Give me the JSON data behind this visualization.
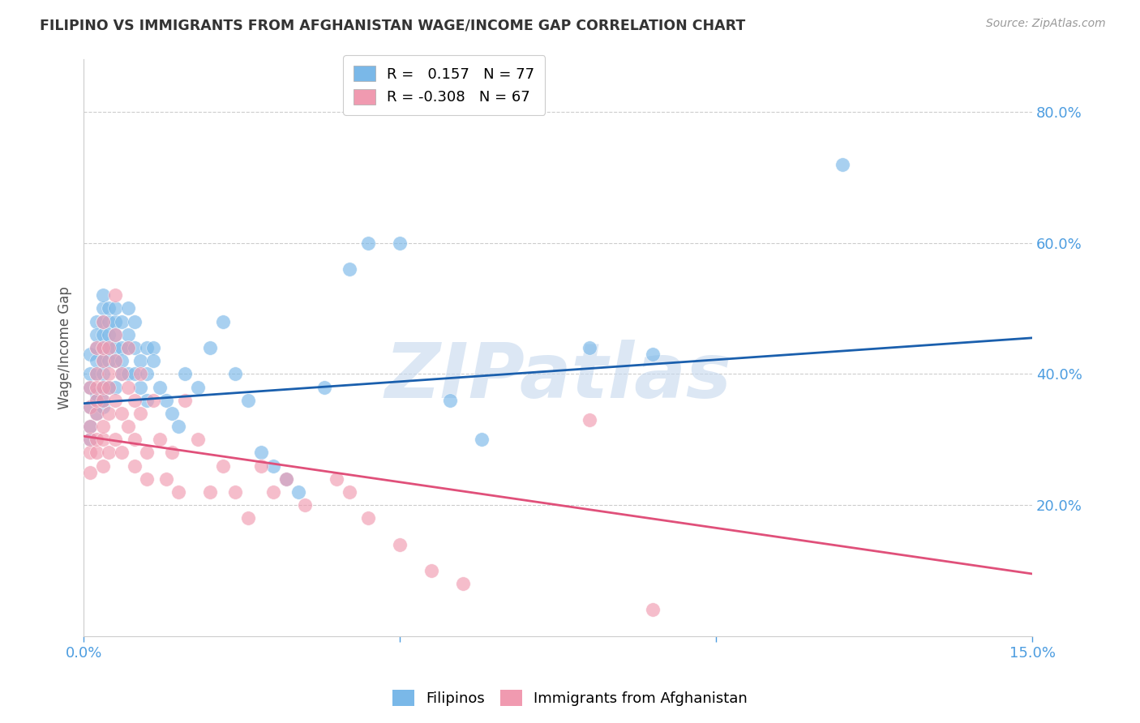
{
  "title": "FILIPINO VS IMMIGRANTS FROM AFGHANISTAN WAGE/INCOME GAP CORRELATION CHART",
  "source": "Source: ZipAtlas.com",
  "xmin": 0.0,
  "xmax": 0.15,
  "ymin": 0.0,
  "ymax": 0.88,
  "r_filipino": 0.157,
  "n_filipino": 77,
  "r_afghan": -0.308,
  "n_afghan": 67,
  "color_filipino": "#7ab8e8",
  "color_afghan": "#f09ab0",
  "color_line_filipino": "#1a5fad",
  "color_line_afghan": "#e0507a",
  "color_axis_labels": "#4d9de0",
  "watermark_color": "#c5d8ee",
  "filipino_x": [
    0.001,
    0.001,
    0.001,
    0.001,
    0.001,
    0.001,
    0.002,
    0.002,
    0.002,
    0.002,
    0.002,
    0.002,
    0.002,
    0.002,
    0.003,
    0.003,
    0.003,
    0.003,
    0.003,
    0.003,
    0.003,
    0.003,
    0.003,
    0.003,
    0.004,
    0.004,
    0.004,
    0.004,
    0.004,
    0.004,
    0.005,
    0.005,
    0.005,
    0.005,
    0.005,
    0.005,
    0.006,
    0.006,
    0.006,
    0.006,
    0.007,
    0.007,
    0.007,
    0.007,
    0.008,
    0.008,
    0.008,
    0.009,
    0.009,
    0.01,
    0.01,
    0.01,
    0.011,
    0.011,
    0.012,
    0.013,
    0.014,
    0.015,
    0.016,
    0.018,
    0.02,
    0.022,
    0.024,
    0.026,
    0.028,
    0.03,
    0.032,
    0.034,
    0.038,
    0.042,
    0.045,
    0.05,
    0.058,
    0.063,
    0.08,
    0.09,
    0.12
  ],
  "filipino_y": [
    0.38,
    0.35,
    0.43,
    0.4,
    0.32,
    0.3,
    0.44,
    0.4,
    0.37,
    0.34,
    0.48,
    0.36,
    0.42,
    0.46,
    0.5,
    0.46,
    0.42,
    0.38,
    0.35,
    0.44,
    0.48,
    0.52,
    0.4,
    0.36,
    0.44,
    0.48,
    0.42,
    0.38,
    0.5,
    0.46,
    0.44,
    0.48,
    0.42,
    0.38,
    0.46,
    0.5,
    0.44,
    0.4,
    0.48,
    0.42,
    0.46,
    0.5,
    0.44,
    0.4,
    0.48,
    0.44,
    0.4,
    0.42,
    0.38,
    0.44,
    0.4,
    0.36,
    0.44,
    0.42,
    0.38,
    0.36,
    0.34,
    0.32,
    0.4,
    0.38,
    0.44,
    0.48,
    0.4,
    0.36,
    0.28,
    0.26,
    0.24,
    0.22,
    0.38,
    0.56,
    0.6,
    0.6,
    0.36,
    0.3,
    0.44,
    0.43,
    0.72
  ],
  "afghan_x": [
    0.001,
    0.001,
    0.001,
    0.001,
    0.001,
    0.001,
    0.002,
    0.002,
    0.002,
    0.002,
    0.002,
    0.002,
    0.002,
    0.003,
    0.003,
    0.003,
    0.003,
    0.003,
    0.003,
    0.003,
    0.003,
    0.004,
    0.004,
    0.004,
    0.004,
    0.004,
    0.005,
    0.005,
    0.005,
    0.005,
    0.005,
    0.006,
    0.006,
    0.006,
    0.007,
    0.007,
    0.007,
    0.008,
    0.008,
    0.008,
    0.009,
    0.009,
    0.01,
    0.01,
    0.011,
    0.012,
    0.013,
    0.014,
    0.015,
    0.016,
    0.018,
    0.02,
    0.022,
    0.024,
    0.026,
    0.028,
    0.03,
    0.032,
    0.035,
    0.04,
    0.042,
    0.045,
    0.05,
    0.055,
    0.06,
    0.08,
    0.09
  ],
  "afghan_y": [
    0.28,
    0.35,
    0.3,
    0.38,
    0.25,
    0.32,
    0.4,
    0.34,
    0.28,
    0.36,
    0.3,
    0.44,
    0.38,
    0.42,
    0.36,
    0.3,
    0.44,
    0.38,
    0.32,
    0.48,
    0.26,
    0.4,
    0.34,
    0.28,
    0.44,
    0.38,
    0.42,
    0.36,
    0.3,
    0.46,
    0.52,
    0.4,
    0.34,
    0.28,
    0.38,
    0.32,
    0.44,
    0.36,
    0.3,
    0.26,
    0.4,
    0.34,
    0.28,
    0.24,
    0.36,
    0.3,
    0.24,
    0.28,
    0.22,
    0.36,
    0.3,
    0.22,
    0.26,
    0.22,
    0.18,
    0.26,
    0.22,
    0.24,
    0.2,
    0.24,
    0.22,
    0.18,
    0.14,
    0.1,
    0.08,
    0.33,
    0.04
  ],
  "trendline_filipino_y0": 0.355,
  "trendline_filipino_y1": 0.455,
  "trendline_afghan_y0": 0.305,
  "trendline_afghan_y1": 0.095
}
